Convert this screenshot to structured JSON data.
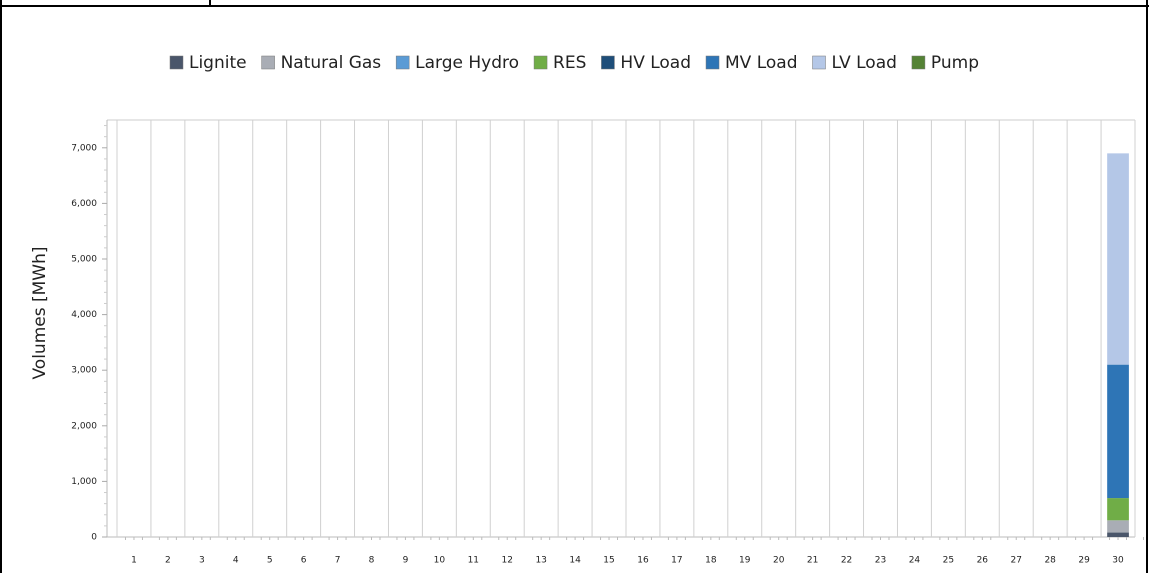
{
  "chart_data": {
    "type": "stacked-bar",
    "y_label": "Volumes [MWh]",
    "categories": [
      "1",
      "2",
      "3",
      "4",
      "5",
      "6",
      "7",
      "8",
      "9",
      "10",
      "11",
      "12",
      "13",
      "14",
      "15",
      "16",
      "17",
      "18",
      "19",
      "20",
      "21",
      "22",
      "23",
      "24",
      "25",
      "26",
      "27",
      "28",
      "29",
      "30"
    ],
    "series": [
      {
        "name": "Lignite",
        "color": "#4a566a",
        "values": [
          null,
          null,
          null,
          null,
          null,
          null,
          null,
          null,
          null,
          null,
          null,
          null,
          null,
          null,
          null,
          null,
          null,
          null,
          null,
          null,
          null,
          null,
          null,
          null,
          null,
          null,
          null,
          null,
          null,
          80
        ]
      },
      {
        "name": "Natural Gas",
        "color": "#a9adb5",
        "values": [
          null,
          null,
          null,
          null,
          null,
          null,
          null,
          null,
          null,
          null,
          null,
          null,
          null,
          null,
          null,
          null,
          null,
          null,
          null,
          null,
          null,
          null,
          null,
          null,
          null,
          null,
          null,
          null,
          null,
          220
        ]
      },
      {
        "name": "Large Hydro",
        "color": "#5b9bd5",
        "values": [
          null,
          null,
          null,
          null,
          null,
          null,
          null,
          null,
          null,
          null,
          null,
          null,
          null,
          null,
          null,
          null,
          null,
          null,
          null,
          null,
          null,
          null,
          null,
          null,
          null,
          null,
          null,
          null,
          null,
          null
        ]
      },
      {
        "name": "RES",
        "color": "#70ad47",
        "values": [
          null,
          null,
          null,
          null,
          null,
          null,
          null,
          null,
          null,
          null,
          null,
          null,
          null,
          null,
          null,
          null,
          null,
          null,
          null,
          null,
          null,
          null,
          null,
          null,
          null,
          null,
          null,
          null,
          null,
          400
        ]
      },
      {
        "name": "HV Load",
        "color": "#1f4e79",
        "values": [
          null,
          null,
          null,
          null,
          null,
          null,
          null,
          null,
          null,
          null,
          null,
          null,
          null,
          null,
          null,
          null,
          null,
          null,
          null,
          null,
          null,
          null,
          null,
          null,
          null,
          null,
          null,
          null,
          null,
          null
        ]
      },
      {
        "name": "MV Load",
        "color": "#2e75b6",
        "values": [
          null,
          null,
          null,
          null,
          null,
          null,
          null,
          null,
          null,
          null,
          null,
          null,
          null,
          null,
          null,
          null,
          null,
          null,
          null,
          null,
          null,
          null,
          null,
          null,
          null,
          null,
          null,
          null,
          null,
          2400
        ]
      },
      {
        "name": "LV Load",
        "color": "#b4c7e7",
        "values": [
          null,
          null,
          null,
          null,
          null,
          null,
          null,
          null,
          null,
          null,
          null,
          null,
          null,
          null,
          null,
          null,
          null,
          null,
          null,
          null,
          null,
          null,
          null,
          null,
          null,
          null,
          null,
          null,
          null,
          3800
        ]
      },
      {
        "name": "Pump",
        "color": "#548235",
        "values": [
          null,
          null,
          null,
          null,
          null,
          null,
          null,
          null,
          null,
          null,
          null,
          null,
          null,
          null,
          null,
          null,
          null,
          null,
          null,
          null,
          null,
          null,
          null,
          null,
          null,
          null,
          null,
          null,
          null,
          null
        ]
      }
    ],
    "ylim": [
      0,
      7500
    ],
    "yticks": [
      0,
      {
        "value": 1000,
        "label": "1,000"
      },
      {
        "value": 2000,
        "label": "2,000"
      },
      {
        "value": 3000,
        "label": "3,000"
      },
      {
        "value": 4000,
        "label": "4,000"
      },
      {
        "value": 5000,
        "label": "5,000"
      },
      {
        "value": 6000,
        "label": "6,000"
      },
      {
        "value": 7000,
        "label": "7,000"
      }
    ],
    "grid": "x"
  }
}
